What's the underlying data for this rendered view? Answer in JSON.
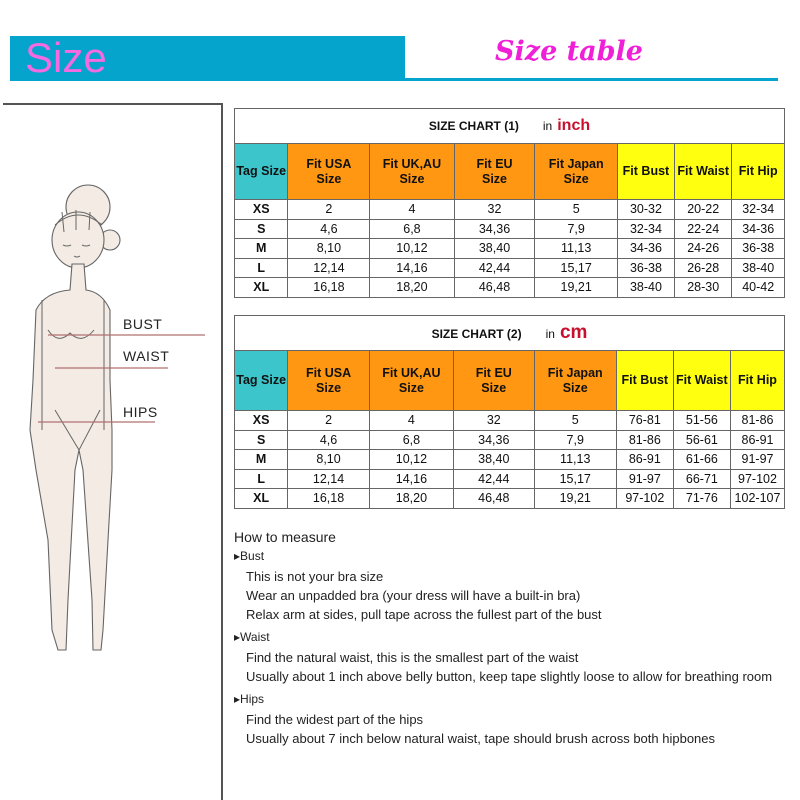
{
  "header": {
    "banner_label": "Size",
    "subtitle": "Size table"
  },
  "figure": {
    "labels": [
      "BUST",
      "WAIST",
      "HIPS"
    ]
  },
  "columns": [
    "Tag Size",
    "Fit USA Size",
    "Fit UK,AU Size",
    "Fit EU Size",
    "Fit Japan Size",
    "Fit Bust",
    "Fit Waist",
    "Fit Hip"
  ],
  "colors": {
    "tag": "#3cc6cc",
    "size": "#ff9712",
    "measure": "#ffff10",
    "banner": "#04a4cc",
    "title": "#f020d8"
  },
  "chart1": {
    "title": "SIZE CHART (1)",
    "unit_prefix": "in",
    "unit": "inch",
    "rows": [
      [
        "XS",
        "2",
        "4",
        "32",
        "5",
        "30-32",
        "20-22",
        "32-34"
      ],
      [
        "S",
        "4,6",
        "6,8",
        "34,36",
        "7,9",
        "32-34",
        "22-24",
        "34-36"
      ],
      [
        "M",
        "8,10",
        "10,12",
        "38,40",
        "11,13",
        "34-36",
        "24-26",
        "36-38"
      ],
      [
        "L",
        "12,14",
        "14,16",
        "42,44",
        "15,17",
        "36-38",
        "26-28",
        "38-40"
      ],
      [
        "XL",
        "16,18",
        "18,20",
        "46,48",
        "19,21",
        "38-40",
        "28-30",
        "40-42"
      ]
    ]
  },
  "chart2": {
    "title": "SIZE CHART (2)",
    "unit_prefix": "in",
    "unit": "cm",
    "rows": [
      [
        "XS",
        "2",
        "4",
        "32",
        "5",
        "76-81",
        "51-56",
        "81-86"
      ],
      [
        "S",
        "4,6",
        "6,8",
        "34,36",
        "7,9",
        "81-86",
        "56-61",
        "86-91"
      ],
      [
        "M",
        "8,10",
        "10,12",
        "38,40",
        "11,13",
        "86-91",
        "61-66",
        "91-97"
      ],
      [
        "L",
        "12,14",
        "14,16",
        "42,44",
        "15,17",
        "91-97",
        "66-71",
        "97-102"
      ],
      [
        "XL",
        "16,18",
        "18,20",
        "46,48",
        "19,21",
        "97-102",
        "71-76",
        "102-107"
      ]
    ]
  },
  "howto": {
    "title": "How to measure",
    "sections": [
      {
        "name": "Bust",
        "lines": [
          "This is not your bra size",
          "Wear an unpadded bra (your dress will have a built-in bra)",
          "Relax arm at sides, pull tape across the fullest part of the bust"
        ]
      },
      {
        "name": "Waist",
        "lines": [
          "Find the natural waist, this is the smallest part of the waist",
          "Usually about 1 inch above belly button, keep tape slightly loose to allow for breathing room"
        ]
      },
      {
        "name": "Hips",
        "lines": [
          "Find the widest part of the hips",
          "Usually about 7 inch below natural waist, tape should brush across both hipbones"
        ]
      }
    ]
  }
}
